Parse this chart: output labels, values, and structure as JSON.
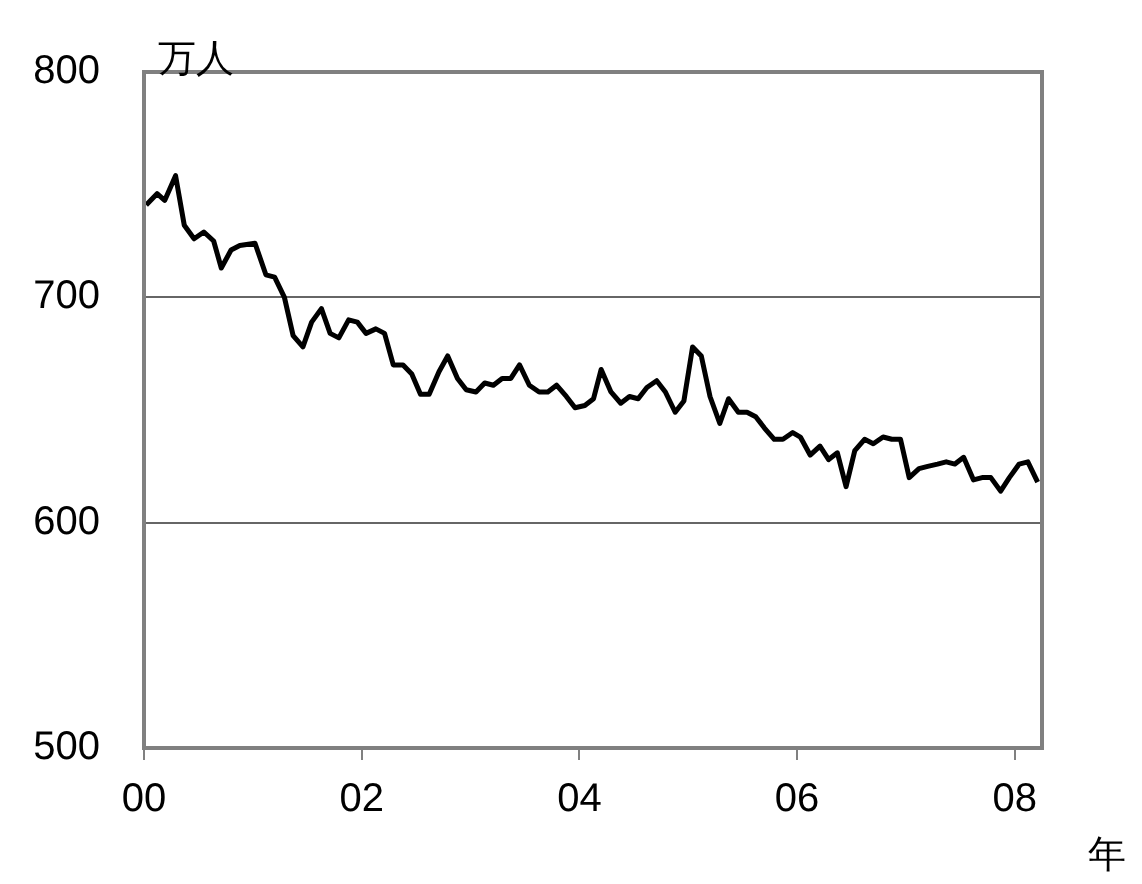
{
  "chart_data": {
    "type": "line",
    "xlabel": "年",
    "ylabel": "万人",
    "x": [
      2000.02,
      2000.12,
      2000.19,
      2000.29,
      2000.37,
      2000.46,
      2000.55,
      2000.64,
      2000.71,
      2000.8,
      2000.88,
      2001.02,
      2001.12,
      2001.2,
      2001.29,
      2001.37,
      2001.46,
      2001.54,
      2001.63,
      2001.71,
      2001.79,
      2001.88,
      2001.96,
      2002.04,
      2002.13,
      2002.21,
      2002.29,
      2002.38,
      2002.46,
      2002.54,
      2002.62,
      2002.71,
      2002.79,
      2002.88,
      2002.96,
      2003.05,
      2003.13,
      2003.21,
      2003.29,
      2003.37,
      2003.45,
      2003.54,
      2003.63,
      2003.71,
      2003.79,
      2003.88,
      2003.96,
      2004.05,
      2004.13,
      2004.2,
      2004.29,
      2004.38,
      2004.46,
      2004.54,
      2004.62,
      2004.71,
      2004.79,
      2004.88,
      2004.96,
      2005.04,
      2005.12,
      2005.2,
      2005.29,
      2005.37,
      2005.46,
      2005.54,
      2005.62,
      2005.7,
      2005.79,
      2005.87,
      2005.96,
      2006.03,
      2006.12,
      2006.21,
      2006.29,
      2006.37,
      2006.45,
      2006.53,
      2006.62,
      2006.7,
      2006.79,
      2006.87,
      2006.95,
      2007.03,
      2007.12,
      2007.2,
      2007.29,
      2007.37,
      2007.45,
      2007.53,
      2007.62,
      2007.7,
      2007.78,
      2007.87,
      2007.95,
      2008.04,
      2008.12,
      2008.21
    ],
    "series": [
      {
        "color": "#000000",
        "values": [
          741,
          746,
          743,
          754,
          732,
          726,
          729,
          725,
          713,
          721,
          723,
          724,
          710,
          709,
          700,
          683,
          678,
          689,
          695,
          684,
          682,
          690,
          689,
          684,
          686,
          684,
          670,
          670,
          666,
          657,
          657,
          667,
          674,
          664,
          659,
          658,
          662,
          661,
          664,
          664,
          670,
          661,
          658,
          658,
          661,
          656,
          651,
          652,
          655,
          668,
          658,
          653,
          656,
          655,
          660,
          663,
          658,
          649,
          654,
          678,
          674,
          656,
          644,
          655,
          649,
          649,
          647,
          642,
          637,
          637,
          640,
          638,
          630,
          634,
          628,
          631,
          616,
          632,
          637,
          635,
          638,
          637,
          637,
          620,
          624,
          625,
          626,
          627,
          626,
          629,
          619,
          620,
          620,
          614,
          620,
          626,
          627,
          618
        ]
      }
    ],
    "xlim": [
      2000,
      2008.25
    ],
    "xticks": [
      {
        "value": 2000,
        "label": "00"
      },
      {
        "value": 2002,
        "label": "02"
      },
      {
        "value": 2004,
        "label": "04"
      },
      {
        "value": 2006,
        "label": "06"
      },
      {
        "value": 2008,
        "label": "08"
      }
    ],
    "ylim": [
      500,
      800
    ],
    "yticks": [
      500,
      600,
      700,
      800
    ],
    "grid": "y",
    "legend": false,
    "marker": "none",
    "line_style": "solid"
  }
}
